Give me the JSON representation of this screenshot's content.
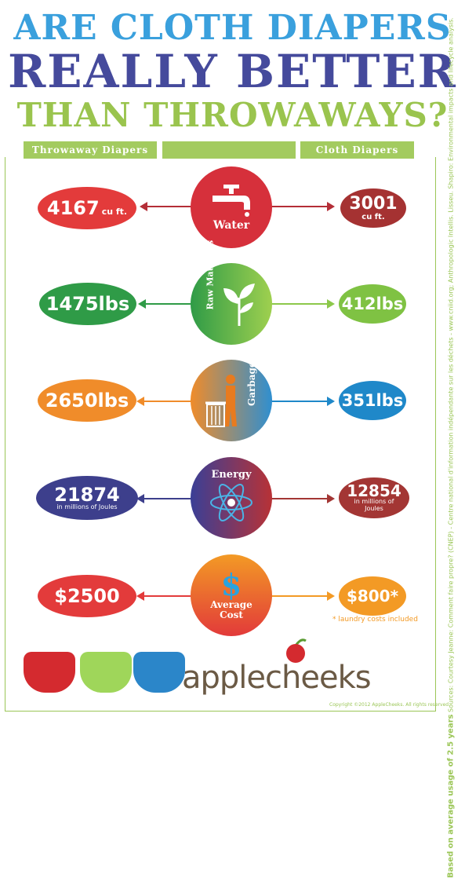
{
  "title": {
    "line1": "ARE CLOTH DIAPERS",
    "line2": "REALLY BETTER",
    "line3": "THAN THROWAWAYS?"
  },
  "headers": {
    "left": "Throwaway Diapers",
    "right": "Cloth Diapers"
  },
  "rows": [
    {
      "category": "Water",
      "throwaway": "4167",
      "throwaway_unit": "cu ft.",
      "cloth": "3001",
      "cloth_unit": "cu ft.",
      "color_left": "#e33b3b",
      "color_right": "#a53232"
    },
    {
      "category": "Raw Materials",
      "throwaway": "1475lbs",
      "cloth": "412lbs",
      "color_left": "#2f9b47",
      "color_right": "#7fc243"
    },
    {
      "category": "Garbage",
      "throwaway": "2650lbs",
      "cloth": "351lbs",
      "color_left": "#f08c2a",
      "color_right": "#1f88c9"
    },
    {
      "category": "Energy",
      "throwaway": "21874",
      "throwaway_note": "in millions of Joules",
      "cloth": "12854",
      "cloth_note": "in millions of Joules",
      "color_left": "#3d3f8c",
      "color_right": "#a33634"
    },
    {
      "category": "Average Cost",
      "throwaway": "$2500",
      "cloth": "$800*",
      "color_left": "#e33b3b",
      "color_right": "#f39a25"
    }
  ],
  "footnote": "* laundry costs included",
  "sources_label": "Based on average usage of 2.5 years",
  "sources_text": "Sources: Courtesy Jeanne: Comment faire propre? (CNEP) - Centre national d'information indépendante sur les déchets - www.cniid.org; Anthropologic Intellis. Lisseu. Shapiro: Environmental impacts and lifecycle analysis.",
  "brand": "applecheeks",
  "copyright": "Copyright ©2012 AppleCheeks. All rights reserved.",
  "colors": {
    "blue_title": "#3aa0dd",
    "purple_title": "#454a9c",
    "green": "#9bc657"
  },
  "icons": [
    "faucet-icon",
    "leaves-icon",
    "trash-person-icon",
    "atom-icon",
    "dollar-icon",
    "apple-icon"
  ]
}
